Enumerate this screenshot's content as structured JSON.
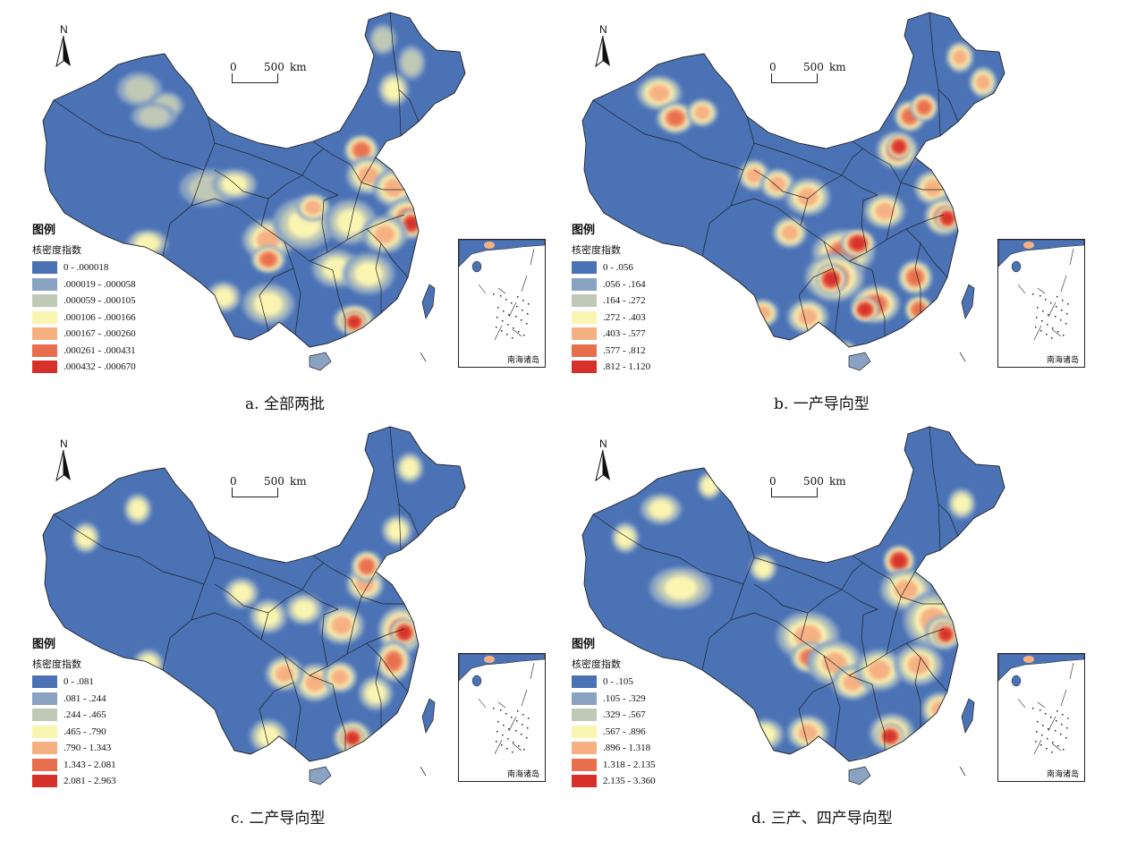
{
  "north_label": "N",
  "scale": {
    "zero": "0",
    "distance": "500",
    "unit": "km"
  },
  "legend_title": "图例",
  "legend_subtitle": "核密度指数",
  "inset_label": "南海诸岛",
  "colors": [
    "#4a72b5",
    "#8aa3c3",
    "#bfc9b5",
    "#fbf5b2",
    "#f6b183",
    "#e86f4d",
    "#d7302a"
  ],
  "panels": [
    {
      "caption": "a. 全部两批",
      "classes": [
        "0 - .000018",
        ".000019 - .000058",
        ".000059 - .000105",
        ".000106 - .000166",
        ".000167 - .000260",
        ".000261 - .000431",
        ".000432 - .000670"
      ]
    },
    {
      "caption": "b. 一产导向型",
      "classes": [
        "0 - .056",
        ".056 - .164",
        ".164 - .272",
        ".272 - .403",
        ".403 - .577",
        ".577 - .812",
        ".812 - 1.120"
      ]
    },
    {
      "caption": "c. 二产导向型",
      "classes": [
        "0 - .081",
        ".081 - .244",
        ".244 - .465",
        ".465 - .790",
        ".790 - 1.343",
        "1.343 - 2.081",
        "2.081 - 2.963"
      ]
    },
    {
      "caption": "d. 三产、四产导向型",
      "classes": [
        "0 - .105",
        ".105 - .329",
        ".329 - .567",
        ".567 - .896",
        ".896 - 1.318",
        "1.318 - 2.135",
        "2.135 - 3.360"
      ]
    }
  ]
}
